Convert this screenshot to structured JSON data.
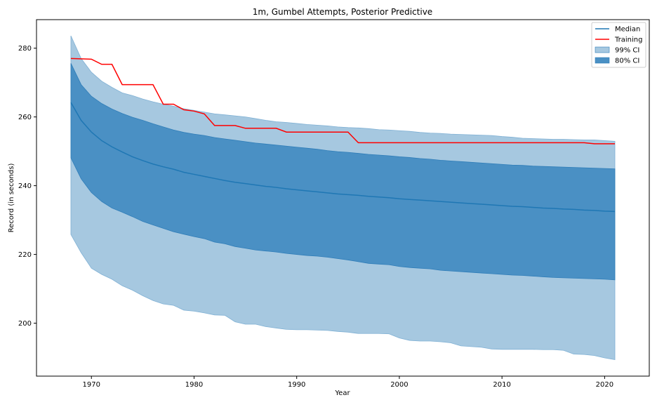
{
  "chart_data": {
    "type": "line",
    "title": "1m, Gumbel Attempts, Posterior Predictive",
    "xlabel": "Year",
    "ylabel": "Record (in seconds)",
    "xlim": [
      1964.65,
      2024.35
    ],
    "ylim": [
      184.6,
      288.3
    ],
    "xticks": [
      1970,
      1980,
      1990,
      2000,
      2010,
      2020
    ],
    "yticks": [
      200,
      220,
      240,
      260,
      280
    ],
    "grid": false,
    "legend_position": "top-right",
    "legend": [
      {
        "label": "Median",
        "kind": "line",
        "color": "#1f77b4"
      },
      {
        "label": "Training",
        "kind": "line",
        "color": "#ff0000"
      },
      {
        "label": "99% CI",
        "kind": "fill",
        "color": "#a6c8e0"
      },
      {
        "label": "80% CI",
        "kind": "fill",
        "color": "#4a90c4"
      }
    ],
    "colors": {
      "median": "#1f77b4",
      "training": "#ff0000",
      "ci99": "#a6c8e0",
      "ci80": "#4a90c4"
    },
    "series": [
      {
        "name": "Median",
        "x": [
          1968,
          1969,
          1970,
          1971,
          1972,
          1973,
          1974,
          1975,
          1976,
          1977,
          1978,
          1979,
          1980,
          1981,
          1982,
          1983,
          1984,
          1985,
          1986,
          1987,
          1988,
          1989,
          1990,
          1991,
          1992,
          1993,
          1994,
          1995,
          1996,
          1997,
          1998,
          1999,
          2000,
          2001,
          2002,
          2003,
          2004,
          2005,
          2006,
          2007,
          2008,
          2009,
          2010,
          2011,
          2012,
          2013,
          2014,
          2015,
          2016,
          2017,
          2018,
          2019,
          2020,
          2021
        ],
        "values": [
          264.2,
          259.0,
          255.6,
          253.1,
          251.3,
          249.8,
          248.4,
          247.3,
          246.3,
          245.5,
          244.8,
          243.9,
          243.3,
          242.7,
          242.1,
          241.5,
          241.0,
          240.6,
          240.2,
          239.8,
          239.5,
          239.1,
          238.8,
          238.5,
          238.2,
          237.9,
          237.6,
          237.4,
          237.2,
          236.9,
          236.7,
          236.5,
          236.2,
          236.0,
          235.8,
          235.6,
          235.4,
          235.2,
          235.0,
          234.8,
          234.6,
          234.4,
          234.2,
          234.0,
          233.9,
          233.7,
          233.5,
          233.4,
          233.2,
          233.1,
          232.9,
          232.8,
          232.6,
          232.5
        ]
      },
      {
        "name": "Training",
        "step_points": [
          [
            1968,
            277.0
          ],
          [
            1970,
            276.8
          ],
          [
            1971,
            275.3
          ],
          [
            1972,
            275.3
          ],
          [
            1973,
            269.4
          ],
          [
            1976,
            269.4
          ],
          [
            1977,
            263.7
          ],
          [
            1978,
            263.7
          ],
          [
            1979,
            262.1
          ],
          [
            1980,
            261.7
          ],
          [
            1981,
            260.9
          ],
          [
            1982,
            257.5
          ],
          [
            1984,
            257.5
          ],
          [
            1985,
            256.7
          ],
          [
            1988,
            256.7
          ],
          [
            1989,
            255.6
          ],
          [
            1995,
            255.6
          ],
          [
            1996,
            252.5
          ],
          [
            2018,
            252.5
          ],
          [
            2019,
            252.2
          ],
          [
            2021,
            252.2
          ]
        ]
      },
      {
        "name": "99% CI",
        "x": [
          1968,
          1969,
          1970,
          1971,
          1972,
          1973,
          1974,
          1975,
          1976,
          1977,
          1978,
          1979,
          1980,
          1981,
          1982,
          1983,
          1984,
          1985,
          1986,
          1987,
          1988,
          1989,
          1990,
          1991,
          1992,
          1993,
          1994,
          1995,
          1996,
          1997,
          1998,
          1999,
          2000,
          2001,
          2002,
          2003,
          2004,
          2005,
          2006,
          2007,
          2008,
          2009,
          2010,
          2011,
          2012,
          2013,
          2014,
          2015,
          2016,
          2017,
          2018,
          2019,
          2020,
          2021
        ],
        "lower": [
          225.8,
          220.5,
          216.0,
          214.2,
          212.8,
          210.9,
          209.6,
          208.0,
          206.6,
          205.6,
          205.2,
          203.8,
          203.5,
          203.0,
          202.4,
          202.3,
          200.4,
          199.7,
          199.7,
          199.0,
          198.6,
          198.2,
          198.1,
          198.1,
          198.0,
          197.9,
          197.6,
          197.4,
          197.0,
          197.0,
          197.0,
          196.9,
          195.7,
          195.0,
          194.8,
          194.8,
          194.6,
          194.3,
          193.4,
          193.2,
          193.0,
          192.5,
          192.4,
          192.4,
          192.4,
          192.4,
          192.3,
          192.3,
          192.1,
          191.0,
          190.9,
          190.6,
          189.9,
          189.4
        ],
        "upper": [
          283.6,
          277.0,
          273.0,
          270.4,
          268.6,
          267.0,
          266.2,
          265.2,
          264.4,
          263.7,
          263.1,
          262.4,
          261.9,
          261.4,
          260.9,
          260.6,
          260.3,
          260.0,
          259.5,
          259.0,
          258.6,
          258.4,
          258.1,
          257.8,
          257.6,
          257.4,
          257.1,
          256.9,
          256.8,
          256.6,
          256.3,
          256.2,
          256.0,
          255.8,
          255.5,
          255.3,
          255.2,
          255.0,
          254.9,
          254.8,
          254.7,
          254.6,
          254.3,
          254.1,
          253.8,
          253.7,
          253.6,
          253.5,
          253.5,
          253.4,
          253.3,
          253.3,
          253.1,
          252.9
        ]
      },
      {
        "name": "80% CI",
        "x": [
          1968,
          1969,
          1970,
          1971,
          1972,
          1973,
          1974,
          1975,
          1976,
          1977,
          1978,
          1979,
          1980,
          1981,
          1982,
          1983,
          1984,
          1985,
          1986,
          1987,
          1988,
          1989,
          1990,
          1991,
          1992,
          1993,
          1994,
          1995,
          1996,
          1997,
          1998,
          1999,
          2000,
          2001,
          2002,
          2003,
          2004,
          2005,
          2006,
          2007,
          2008,
          2009,
          2010,
          2011,
          2012,
          2013,
          2014,
          2015,
          2016,
          2017,
          2018,
          2019,
          2020,
          2021
        ],
        "lower": [
          248.1,
          242.0,
          238.0,
          235.4,
          233.5,
          232.3,
          231.0,
          229.6,
          228.6,
          227.6,
          226.6,
          225.9,
          225.2,
          224.6,
          223.6,
          223.1,
          222.3,
          221.8,
          221.3,
          221.0,
          220.7,
          220.3,
          220.0,
          219.7,
          219.5,
          219.2,
          218.8,
          218.4,
          217.9,
          217.4,
          217.2,
          217.0,
          216.5,
          216.2,
          216.0,
          215.8,
          215.4,
          215.2,
          215.0,
          214.8,
          214.6,
          214.4,
          214.2,
          214.0,
          213.9,
          213.7,
          213.5,
          213.3,
          213.2,
          213.1,
          213.0,
          212.9,
          212.8,
          212.6
        ],
        "upper": [
          275.6,
          269.4,
          266.0,
          263.9,
          262.3,
          261.0,
          259.9,
          259.0,
          258.0,
          257.1,
          256.2,
          255.5,
          255.0,
          254.6,
          254.0,
          253.6,
          253.2,
          252.8,
          252.4,
          252.1,
          251.8,
          251.5,
          251.2,
          250.9,
          250.6,
          250.2,
          249.9,
          249.7,
          249.4,
          249.1,
          248.9,
          248.7,
          248.4,
          248.2,
          247.9,
          247.7,
          247.4,
          247.2,
          247.0,
          246.8,
          246.6,
          246.4,
          246.2,
          246.0,
          245.9,
          245.7,
          245.6,
          245.5,
          245.4,
          245.3,
          245.2,
          245.1,
          245.0,
          244.9
        ]
      }
    ]
  }
}
